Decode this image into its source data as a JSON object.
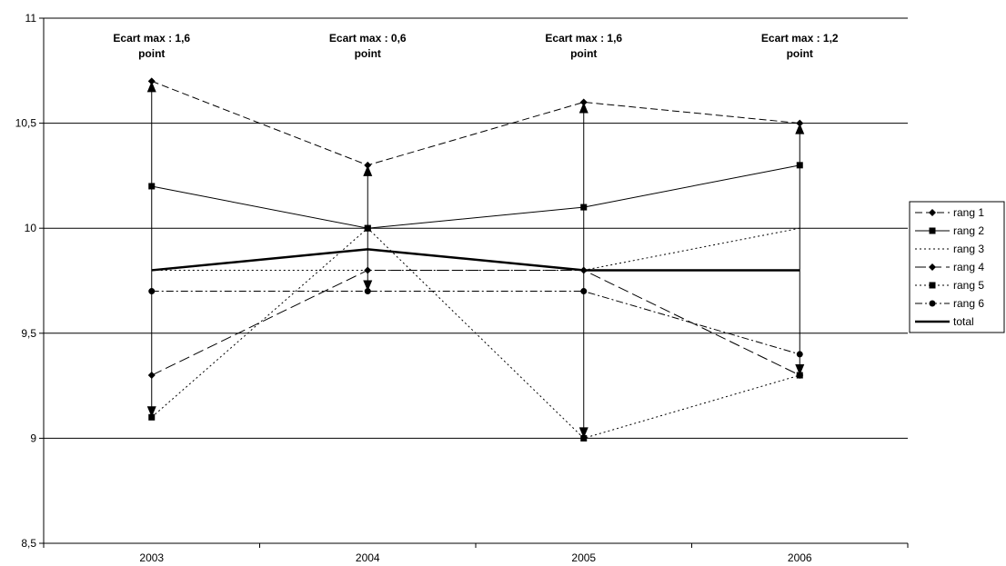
{
  "chart_data": {
    "type": "line",
    "categories": [
      "2003",
      "2004",
      "2005",
      "2006"
    ],
    "ylim": [
      8.5,
      11
    ],
    "yticks": [
      8.5,
      9,
      9.5,
      10,
      10.5,
      11
    ],
    "ytick_labels": [
      "8,5",
      "9",
      "9,5",
      "10",
      "10,5",
      "11"
    ],
    "grid": "horizontal",
    "legend_position": "right",
    "series": [
      {
        "name": "rang 1",
        "values": [
          10.7,
          10.3,
          10.6,
          10.5
        ],
        "dash": "dash",
        "marker": "diamond",
        "width": 1
      },
      {
        "name": "rang 2",
        "values": [
          10.2,
          10.0,
          10.1,
          10.3
        ],
        "dash": "solid",
        "marker": "square",
        "width": 1
      },
      {
        "name": "rang 3",
        "values": [
          9.8,
          9.8,
          9.8,
          10.0
        ],
        "dash": "dot",
        "marker": "none",
        "width": 1
      },
      {
        "name": "rang 4",
        "values": [
          9.3,
          9.8,
          9.8,
          9.3
        ],
        "dash": "longdash",
        "marker": "diamond",
        "width": 1
      },
      {
        "name": "rang 5",
        "values": [
          9.1,
          10.0,
          9.0,
          9.3
        ],
        "dash": "dot",
        "marker": "square",
        "width": 1
      },
      {
        "name": "rang 6",
        "values": [
          9.7,
          9.7,
          9.7,
          9.4
        ],
        "dash": "dashdot",
        "marker": "circle",
        "width": 1
      },
      {
        "name": "total",
        "values": [
          9.8,
          9.9,
          9.8,
          9.8
        ],
        "dash": "solid",
        "marker": "none",
        "width": 2.5
      }
    ],
    "annotations": [
      {
        "category": "2003",
        "line1": "Ecart max : 1,6",
        "line2": "point",
        "from": 9.1,
        "to": 10.7
      },
      {
        "category": "2004",
        "line1": "Ecart max : 0,6",
        "line2": "point",
        "from": 9.7,
        "to": 10.3
      },
      {
        "category": "2005",
        "line1": "Ecart max : 1,6",
        "line2": "point",
        "from": 9.0,
        "to": 10.6
      },
      {
        "category": "2006",
        "line1": "Ecart max : 1,2",
        "line2": "point",
        "from": 9.3,
        "to": 10.5
      }
    ]
  }
}
